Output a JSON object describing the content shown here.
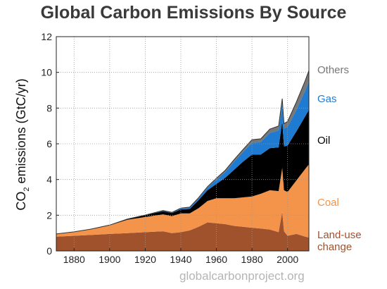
{
  "chart_data": {
    "type": "area",
    "title": "Global Carbon Emissions By Source",
    "ylabel_main": "CO",
    "ylabel_sub": "2",
    "ylabel_rest": " emissions (GtC/yr)",
    "xlim": [
      1870,
      2012
    ],
    "ylim": [
      0,
      12
    ],
    "x_ticks": [
      1880,
      1900,
      1920,
      1940,
      1960,
      1980,
      2000
    ],
    "y_ticks": [
      0,
      2,
      4,
      6,
      8,
      10,
      12
    ],
    "grid": true,
    "stacked": true,
    "x": [
      1870,
      1880,
      1890,
      1900,
      1910,
      1920,
      1930,
      1935,
      1940,
      1945,
      1950,
      1955,
      1960,
      1965,
      1970,
      1975,
      1980,
      1985,
      1990,
      1995,
      1997,
      1998,
      2000,
      2005,
      2010,
      2012
    ],
    "series": [
      {
        "name": "Land-use change",
        "color": "#a0522d",
        "values": [
          0.8,
          0.85,
          0.9,
          0.95,
          1.0,
          1.05,
          1.1,
          1.0,
          1.05,
          1.15,
          1.35,
          1.6,
          1.55,
          1.5,
          1.4,
          1.35,
          1.3,
          1.25,
          1.2,
          1.05,
          2.2,
          1.1,
          0.85,
          0.95,
          0.8,
          0.75
        ]
      },
      {
        "name": "Coal",
        "color": "#f4934a",
        "values": [
          0.15,
          0.22,
          0.32,
          0.48,
          0.75,
          0.85,
          0.95,
          0.95,
          1.05,
          0.95,
          1.05,
          1.2,
          1.4,
          1.45,
          1.55,
          1.65,
          1.75,
          1.95,
          2.2,
          2.3,
          2.45,
          2.3,
          2.45,
          3.0,
          3.8,
          4.1
        ]
      },
      {
        "name": "Oil",
        "color": "#000000",
        "values": [
          0.0,
          0.0,
          0.01,
          0.02,
          0.04,
          0.1,
          0.17,
          0.17,
          0.23,
          0.25,
          0.45,
          0.6,
          0.8,
          1.15,
          1.6,
          2.0,
          2.35,
          2.2,
          2.35,
          2.45,
          2.6,
          2.45,
          2.6,
          2.75,
          2.95,
          3.05
        ]
      },
      {
        "name": "Gas",
        "color": "#1f7bd1",
        "values": [
          0.0,
          0.0,
          0.0,
          0.0,
          0.0,
          0.01,
          0.03,
          0.03,
          0.05,
          0.08,
          0.1,
          0.15,
          0.25,
          0.32,
          0.45,
          0.55,
          0.65,
          0.7,
          0.85,
          0.95,
          1.0,
          1.0,
          1.05,
          1.2,
          1.45,
          1.6
        ]
      },
      {
        "name": "Others",
        "color": "#777777",
        "values": [
          0.0,
          0.0,
          0.0,
          0.0,
          0.0,
          0.0,
          0.01,
          0.01,
          0.02,
          0.02,
          0.04,
          0.05,
          0.07,
          0.1,
          0.12,
          0.14,
          0.18,
          0.18,
          0.22,
          0.25,
          0.28,
          0.28,
          0.3,
          0.45,
          0.55,
          0.6
        ]
      }
    ]
  },
  "source_note": "globalcarbonproject.org"
}
